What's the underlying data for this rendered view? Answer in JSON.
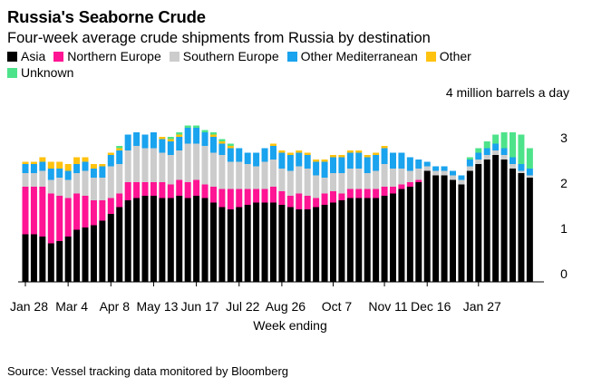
{
  "header": {
    "title": "Russia's Seaborne Crude",
    "subtitle": "Four-week average crude shipments from Russia by destination"
  },
  "footer": {
    "source": "Source: Vessel tracking data monitored by Bloomberg"
  },
  "colors": {
    "Asia": "#000000",
    "Northern Europe": "#ff1493",
    "Southern Europe": "#cccccc",
    "Other Mediterranean": "#1aa3ee",
    "Other": "#ffc20e",
    "Unknown": "#4de38a"
  },
  "chart_data": {
    "type": "bar",
    "stacked": true,
    "title": "Russia's Seaborne Crude",
    "subtitle": "Four-week average crude shipments from Russia by destination",
    "xlabel": "Week ending",
    "ylabel": "",
    "unit_label": "4 million barrels a day",
    "ylim": [
      0,
      4
    ],
    "yticks": [
      0,
      1,
      2,
      3
    ],
    "grid": false,
    "legend_position": "top",
    "xtick_labels": [
      {
        "index": 0,
        "label": "Jan 28"
      },
      {
        "index": 5,
        "label": "Mar 4"
      },
      {
        "index": 10,
        "label": "Apr 8"
      },
      {
        "index": 15,
        "label": "May 13"
      },
      {
        "index": 20,
        "label": "Jun 17"
      },
      {
        "index": 25,
        "label": "Jul 22"
      },
      {
        "index": 30,
        "label": "Aug 26"
      },
      {
        "index": 36,
        "label": "Oct 7"
      },
      {
        "index": 42,
        "label": "Nov 11"
      },
      {
        "index": 47,
        "label": "Dec 16"
      },
      {
        "index": 53,
        "label": "Jan 27"
      }
    ],
    "series": [
      {
        "name": "Asia",
        "values": [
          1.05,
          1.05,
          1.0,
          0.85,
          0.9,
          1.0,
          1.15,
          1.2,
          1.25,
          1.35,
          1.5,
          1.65,
          1.8,
          1.85,
          1.9,
          1.9,
          1.85,
          1.85,
          1.9,
          1.85,
          1.9,
          1.85,
          1.75,
          1.65,
          1.6,
          1.65,
          1.7,
          1.75,
          1.75,
          1.75,
          1.7,
          1.65,
          1.6,
          1.6,
          1.65,
          1.7,
          1.75,
          1.8,
          1.85,
          1.85,
          1.85,
          1.85,
          1.9,
          1.95,
          2.05,
          2.1,
          2.2,
          2.45,
          2.35,
          2.35,
          2.25,
          2.15,
          2.45,
          2.6,
          2.7,
          2.8,
          2.7,
          2.5,
          2.4,
          2.3
        ]
      },
      {
        "name": "Northern Europe",
        "values": [
          1.05,
          1.05,
          1.1,
          1.1,
          1.0,
          0.85,
          0.8,
          0.7,
          0.55,
          0.45,
          0.35,
          0.3,
          0.4,
          0.35,
          0.3,
          0.3,
          0.35,
          0.3,
          0.35,
          0.35,
          0.35,
          0.3,
          0.35,
          0.4,
          0.45,
          0.4,
          0.35,
          0.3,
          0.3,
          0.35,
          0.3,
          0.25,
          0.35,
          0.3,
          0.2,
          0.25,
          0.25,
          0.15,
          0.2,
          0.2,
          0.2,
          0.2,
          0.2,
          0.15,
          0.1,
          0.1,
          0.05,
          0,
          0,
          0,
          0,
          0,
          0,
          0,
          0,
          0,
          0,
          0,
          0,
          0
        ]
      },
      {
        "name": "Southern Europe",
        "values": [
          0.3,
          0.3,
          0.35,
          0.3,
          0.4,
          0.4,
          0.45,
          0.55,
          0.5,
          0.5,
          0.7,
          0.65,
          0.7,
          0.8,
          0.75,
          0.75,
          0.65,
          0.65,
          0.65,
          0.85,
          0.8,
          0.85,
          0.75,
          0.75,
          0.6,
          0.6,
          0.55,
          0.5,
          0.6,
          0.6,
          0.5,
          0.55,
          0.6,
          0.6,
          0.5,
          0.35,
          0.4,
          0.45,
          0.45,
          0.45,
          0.35,
          0.4,
          0.5,
          0.4,
          0.35,
          0.25,
          0.25,
          0.1,
          0.1,
          0.1,
          0.1,
          0.1,
          0.1,
          0.1,
          0.1,
          0.1,
          0.1,
          0.1,
          0.05,
          0.05
        ]
      },
      {
        "name": "Other Mediterranean",
        "values": [
          0.2,
          0.2,
          0.2,
          0.25,
          0.2,
          0.2,
          0.2,
          0.2,
          0.2,
          0.25,
          0.25,
          0.3,
          0.35,
          0.3,
          0.3,
          0.35,
          0.3,
          0.3,
          0.3,
          0.35,
          0.35,
          0.3,
          0.35,
          0.25,
          0.3,
          0.3,
          0.25,
          0.3,
          0.3,
          0.3,
          0.35,
          0.35,
          0.3,
          0.3,
          0.3,
          0.35,
          0.35,
          0.35,
          0.35,
          0.35,
          0.35,
          0.35,
          0.35,
          0.35,
          0.35,
          0.3,
          0.2,
          0.1,
          0.1,
          0.1,
          0.1,
          0.1,
          0.15,
          0.15,
          0.15,
          0.15,
          0.15,
          0.15,
          0.15,
          0.15
        ]
      },
      {
        "name": "Other",
        "values": [
          0.05,
          0.05,
          0.1,
          0.15,
          0.15,
          0.15,
          0.15,
          0.1,
          0.1,
          0.05,
          0.05,
          0.05,
          0,
          0,
          0,
          0,
          0.05,
          0.05,
          0.05,
          0,
          0,
          0,
          0.05,
          0.05,
          0.05,
          0,
          0,
          0,
          0,
          0.05,
          0.05,
          0.05,
          0.05,
          0.05,
          0.05,
          0.05,
          0.05,
          0.05,
          0.05,
          0.05,
          0.05,
          0.05,
          0.05,
          0,
          0,
          0,
          0,
          0,
          0,
          0,
          0,
          0,
          0,
          0,
          0,
          0,
          0,
          0,
          0,
          0
        ]
      },
      {
        "name": "Unknown",
        "values": [
          0,
          0,
          0,
          0,
          0,
          0,
          0,
          0,
          0,
          0,
          0,
          0.05,
          0,
          0,
          0,
          0,
          0,
          0.05,
          0.05,
          0.05,
          0.05,
          0.05,
          0.05,
          0.05,
          0.05,
          0,
          0,
          0,
          0,
          0,
          0,
          0,
          0,
          0,
          0,
          0,
          0,
          0,
          0,
          0,
          0,
          0,
          0,
          0,
          0,
          0,
          0,
          0,
          0,
          0,
          0,
          0,
          0.05,
          0.1,
          0.15,
          0.2,
          0.35,
          0.55,
          0.65,
          0.45
        ]
      }
    ]
  }
}
